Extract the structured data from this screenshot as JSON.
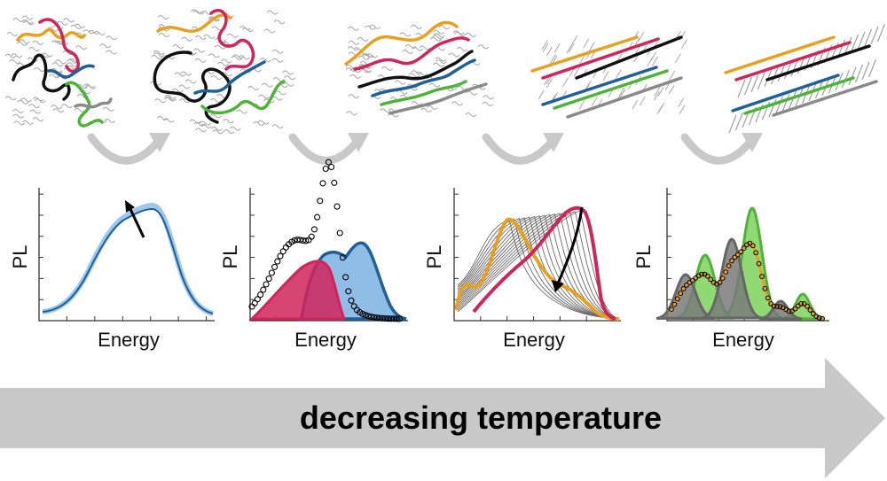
{
  "panels": [
    {
      "ylabel": "PL",
      "xlabel": "Energy"
    },
    {
      "ylabel": "PL",
      "xlabel": "Energy"
    },
    {
      "ylabel": "PL",
      "xlabel": "Energy"
    },
    {
      "ylabel": "PL",
      "xlabel": "Energy"
    }
  ],
  "arrow": {
    "label": "decreasing temperature"
  },
  "colors": {
    "orange": "#e8a020",
    "magenta": "#d0245a",
    "black": "#111111",
    "blue": "#1f5f9a",
    "green": "#4fb33a",
    "gray": "#8a8a8a",
    "lightblue": "#8fbde6",
    "lightgreen": "#7dd25a",
    "arrowgray": "#c8c8c8"
  }
}
